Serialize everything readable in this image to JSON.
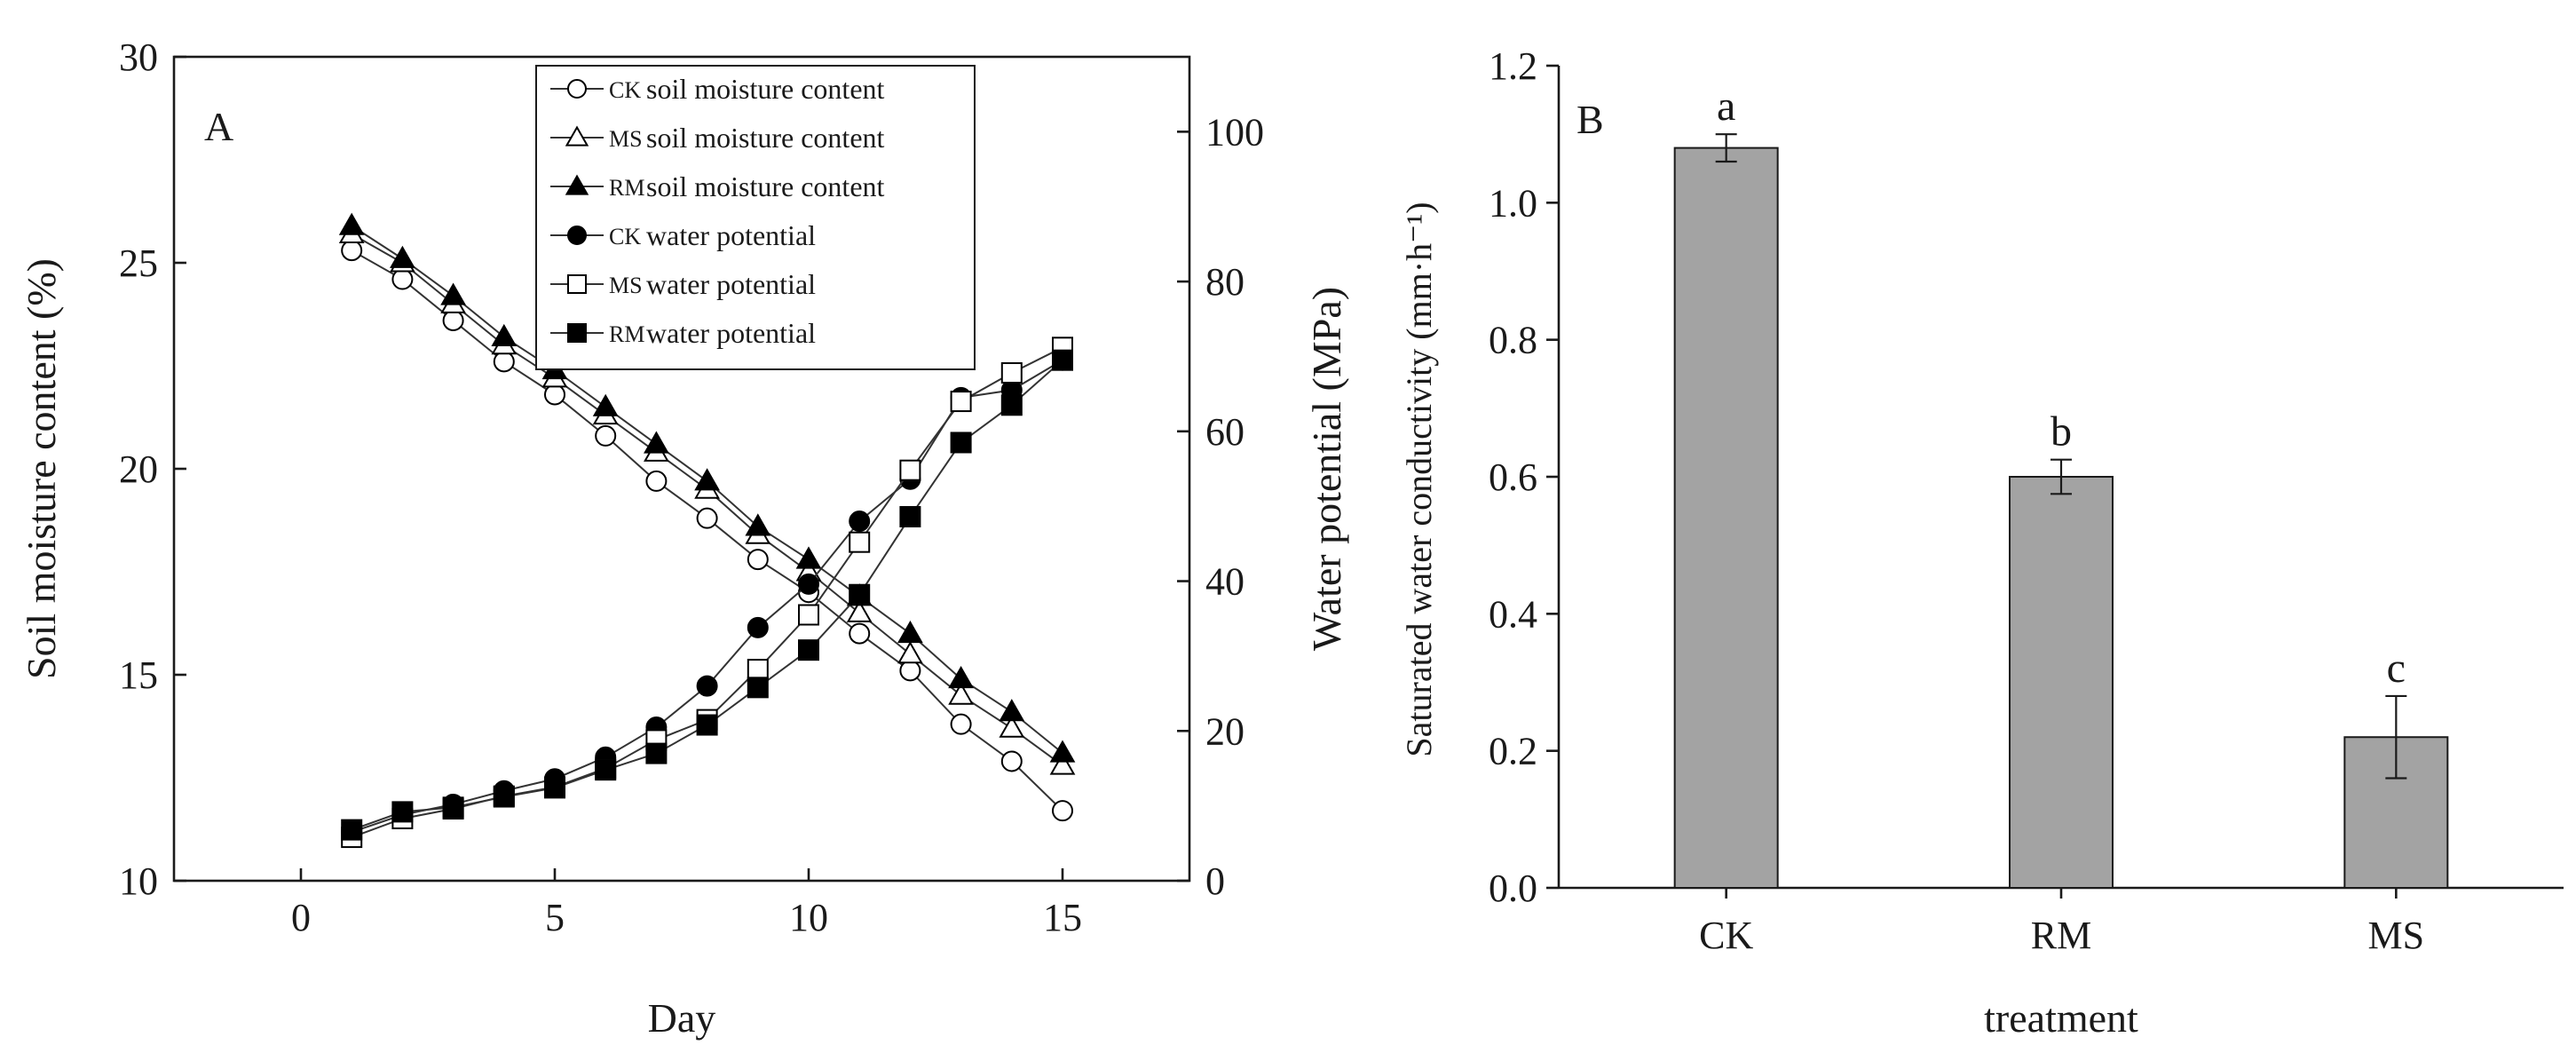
{
  "chart_data": [
    {
      "panel_label": "A",
      "type": "line",
      "title": "",
      "xlabel": "Day",
      "ylabel_left": "Soil moisture content (%)",
      "ylabel_right": "Water potential (MPa)",
      "xlim": [
        -2.5,
        17.5
      ],
      "ylim_left": [
        10,
        30
      ],
      "ylim_right": [
        0,
        110
      ],
      "x_ticks": [
        0,
        5,
        10,
        15
      ],
      "y_ticks_left": [
        10,
        15,
        20,
        25,
        30
      ],
      "y_ticks_right": [
        0,
        20,
        40,
        60,
        80,
        100
      ],
      "legend_position": "top-center",
      "x": [
        1,
        2,
        3,
        4,
        5,
        6,
        7,
        8,
        9,
        10,
        11,
        12,
        13,
        14,
        15
      ],
      "series": [
        {
          "name": "soil moisture content",
          "prefix": "CK",
          "axis": "left",
          "marker": "circle",
          "fill": "open",
          "values": [
            25.3,
            24.6,
            23.6,
            22.6,
            21.8,
            20.8,
            19.7,
            18.8,
            17.8,
            17.0,
            16.0,
            15.1,
            13.8,
            12.9,
            11.7
          ]
        },
        {
          "name": "soil moisture content",
          "prefix": "MS",
          "axis": "left",
          "marker": "triangle",
          "fill": "open",
          "values": [
            25.7,
            25.0,
            24.0,
            23.0,
            22.2,
            21.3,
            20.4,
            19.5,
            18.4,
            17.5,
            16.5,
            15.5,
            14.5,
            13.7,
            12.8
          ]
        },
        {
          "name": "soil moisture content",
          "prefix": "RM",
          "axis": "left",
          "marker": "triangle",
          "fill": "filled",
          "values": [
            25.9,
            25.1,
            24.2,
            23.2,
            22.4,
            21.5,
            20.6,
            19.7,
            18.6,
            17.8,
            16.9,
            16.0,
            14.9,
            14.1,
            13.1
          ]
        },
        {
          "name": "water potential",
          "prefix": "CK",
          "axis": "right",
          "marker": "circle",
          "fill": "filled",
          "values": [
            6.5,
            8.8,
            10.2,
            12.0,
            13.6,
            16.5,
            20.5,
            26.0,
            33.8,
            39.6,
            48.0,
            53.6,
            64.5,
            65.5,
            69.5
          ]
        },
        {
          "name": "water potential",
          "prefix": "MS",
          "axis": "right",
          "marker": "square",
          "fill": "open",
          "values": [
            5.8,
            8.3,
            9.6,
            11.3,
            12.5,
            15.0,
            18.8,
            21.5,
            28.2,
            35.5,
            45.2,
            54.8,
            64.0,
            67.8,
            71.2
          ]
        },
        {
          "name": "water potential",
          "prefix": "RM",
          "axis": "right",
          "marker": "square",
          "fill": "filled",
          "values": [
            6.8,
            9.2,
            9.8,
            11.2,
            12.4,
            14.8,
            17.0,
            20.8,
            25.8,
            30.8,
            38.2,
            48.6,
            58.5,
            63.5,
            69.5
          ]
        }
      ]
    },
    {
      "panel_label": "B",
      "type": "bar",
      "title": "",
      "xlabel": "treatment",
      "ylabel": "Saturated water conductivity (mm·h⁻¹)",
      "ylim": [
        0.0,
        1.2
      ],
      "y_ticks": [
        "0.0",
        "0.2",
        "0.4",
        "0.6",
        "0.8",
        "1.0",
        "1.2"
      ],
      "categories": [
        "CK",
        "RM",
        "MS"
      ],
      "values": [
        1.08,
        0.6,
        0.22
      ],
      "errors": [
        0.02,
        0.025,
        0.06
      ],
      "significance": [
        "a",
        "b",
        "c"
      ]
    }
  ]
}
